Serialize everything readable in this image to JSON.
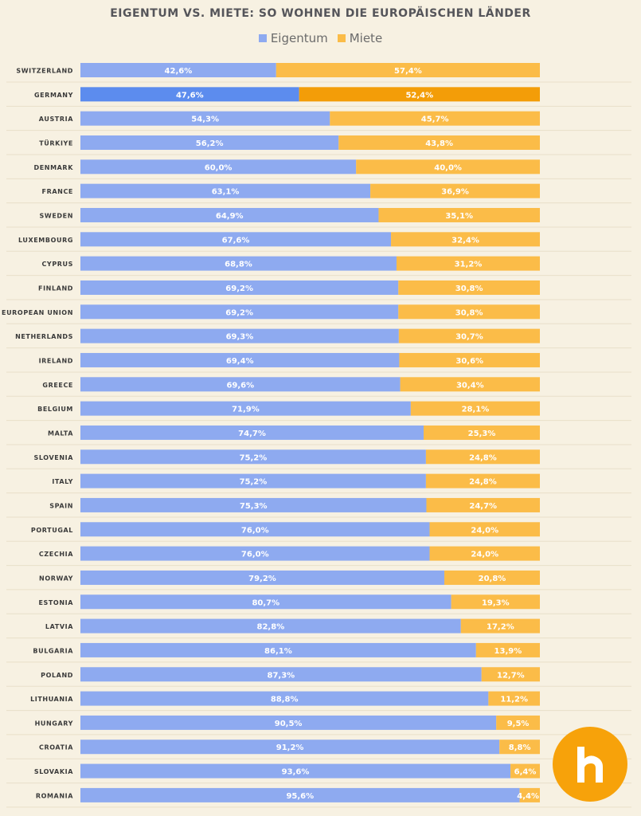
{
  "title": "EIGENTUM VS. MIETE: SO WOHNEN DIE EUROPÄISCHEN LÄNDER",
  "legend": [
    {
      "label": "Eigentum",
      "color": "#8eaaf0"
    },
    {
      "label": "Miete",
      "color": "#fbbc48"
    }
  ],
  "colors": {
    "owner": "#8eaaf0",
    "renter": "#fbbc48",
    "owner_highlight": "#5c8cee",
    "renter_highlight": "#f39d08",
    "highlight_country": "GERMANY",
    "logo": "#f7a20a"
  },
  "logo_icon": "house-h-icon",
  "chart_data": {
    "type": "bar",
    "orientation": "horizontal",
    "stacked": true,
    "percent": true,
    "title": "EIGENTUM VS. MIETE: SO WOHNEN DIE EUROPÄISCHEN LÄNDER",
    "legend_placement": "top",
    "xlim": [
      0,
      100
    ],
    "categories": [
      "SWITZERLAND",
      "GERMANY",
      "AUSTRIA",
      "TÜRKIYE",
      "DENMARK",
      "FRANCE",
      "SWEDEN",
      "LUXEMBOURG",
      "CYPRUS",
      "FINLAND",
      "EUROPEAN UNION",
      "NETHERLANDS",
      "IRELAND",
      "GREECE",
      "BELGIUM",
      "MALTA",
      "SLOVENIA",
      "ITALY",
      "SPAIN",
      "PORTUGAL",
      "CZECHIA",
      "NORWAY",
      "ESTONIA",
      "LATVIA",
      "BULGARIA",
      "POLAND",
      "LITHUANIA",
      "HUNGARY",
      "CROATIA",
      "SLOVAKIA",
      "ROMANIA"
    ],
    "series": [
      {
        "name": "Eigentum",
        "values": [
          42.6,
          47.6,
          54.3,
          56.2,
          60.0,
          63.1,
          64.9,
          67.6,
          68.8,
          69.2,
          69.2,
          69.3,
          69.4,
          69.6,
          71.9,
          74.7,
          75.2,
          75.2,
          75.3,
          76.0,
          76.0,
          79.2,
          80.7,
          82.8,
          86.1,
          87.3,
          88.8,
          90.5,
          91.2,
          93.6,
          95.6
        ],
        "labels": [
          "42,6%",
          "47,6%",
          "54,3%",
          "56,2%",
          "60,0%",
          "63,1%",
          "64,9%",
          "67,6%",
          "68,8%",
          "69,2%",
          "69,2%",
          "69,3%",
          "69,4%",
          "69,6%",
          "71,9%",
          "74,7%",
          "75,2%",
          "75,2%",
          "75,3%",
          "76,0%",
          "76,0%",
          "79,2%",
          "80,7%",
          "82,8%",
          "86,1%",
          "87,3%",
          "88,8%",
          "90,5%",
          "91,2%",
          "93,6%",
          "95,6%"
        ]
      },
      {
        "name": "Miete",
        "values": [
          57.4,
          52.4,
          45.7,
          43.8,
          40.0,
          36.9,
          35.1,
          32.4,
          31.2,
          30.8,
          30.8,
          30.7,
          30.6,
          30.4,
          28.1,
          25.3,
          24.8,
          24.8,
          24.7,
          24.0,
          24.0,
          20.8,
          19.3,
          17.2,
          13.9,
          12.7,
          11.2,
          9.5,
          8.8,
          6.4,
          4.4
        ],
        "labels": [
          "57,4%",
          "52,4%",
          "45,7%",
          "43,8%",
          "40,0%",
          "36,9%",
          "35,1%",
          "32,4%",
          "31,2%",
          "30,8%",
          "30,8%",
          "30,7%",
          "30,6%",
          "30,4%",
          "28,1%",
          "25,3%",
          "24,8%",
          "24,8%",
          "24,7%",
          "24,0%",
          "24,0%",
          "20,8%",
          "19,3%",
          "17,2%",
          "13,9%",
          "12,7%",
          "11,2%",
          "9,5%",
          "8,8%",
          "6,4%",
          "4,4%"
        ]
      }
    ]
  }
}
